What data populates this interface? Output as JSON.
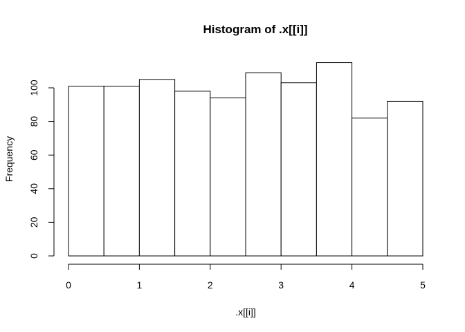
{
  "chart_data": {
    "type": "bar",
    "title": "Histogram of .x[[i]]",
    "xlabel": ".x[[i]]",
    "ylabel": "Frequency",
    "bin_edges": [
      0,
      0.5,
      1,
      1.5,
      2,
      2.5,
      3,
      3.5,
      4,
      4.5,
      5
    ],
    "values": [
      101,
      101,
      105,
      98,
      94,
      109,
      103,
      115,
      82,
      92
    ],
    "xlim": [
      0,
      5
    ],
    "ylim": [
      0,
      115
    ],
    "x_ticks": [
      "0",
      "1",
      "2",
      "3",
      "4",
      "5"
    ],
    "y_ticks": [
      "0",
      "20",
      "40",
      "60",
      "80",
      "100"
    ],
    "grid": false,
    "legend": "none"
  }
}
